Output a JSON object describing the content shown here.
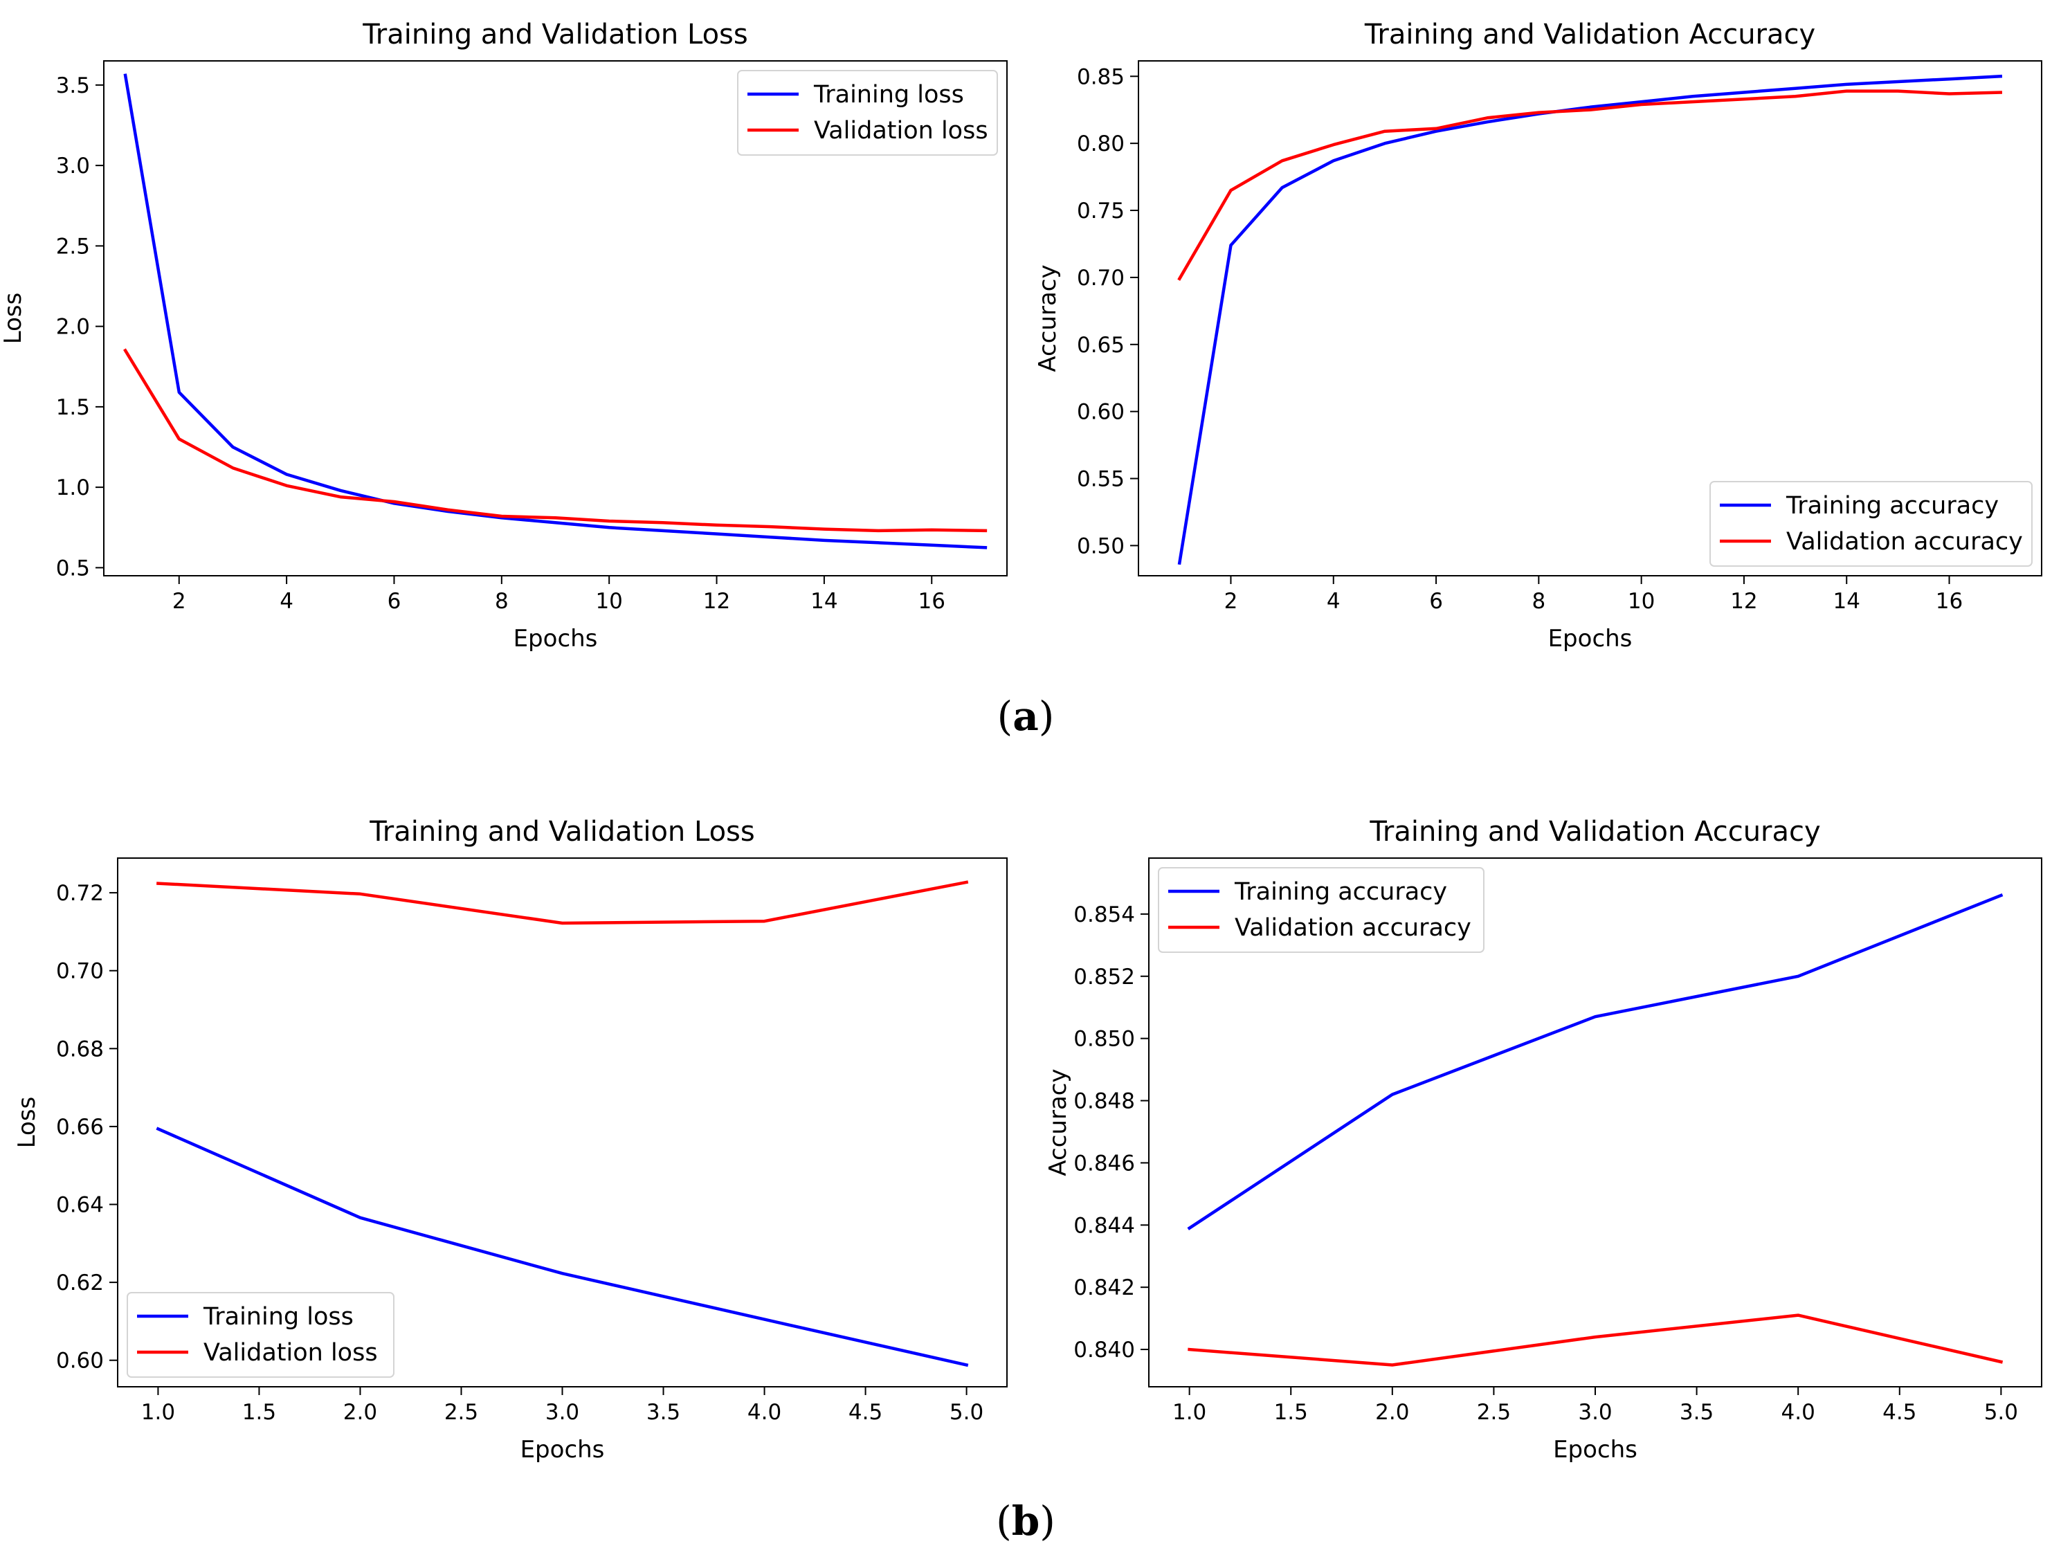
{
  "captions": {
    "a": "a",
    "b": "b"
  },
  "colors": {
    "training": "#0000ff",
    "validation": "#ff0000"
  },
  "chart_data": [
    {
      "id": "a-loss",
      "type": "line",
      "title": "Training and Validation Loss",
      "xlabel": "Epochs",
      "ylabel": "Loss",
      "xlim": [
        0.6,
        17.4
      ],
      "ylim": [
        0.45,
        3.65
      ],
      "xticks": [
        2,
        4,
        6,
        8,
        10,
        12,
        14,
        16
      ],
      "xtick_labels": [
        "2",
        "4",
        "6",
        "8",
        "10",
        "12",
        "14",
        "16"
      ],
      "yticks": [
        0.5,
        1.0,
        1.5,
        2.0,
        2.5,
        3.0,
        3.5
      ],
      "ytick_labels": [
        "0.5",
        "1.0",
        "1.5",
        "2.0",
        "2.5",
        "3.0",
        "3.5"
      ],
      "legend_position": "upper-right",
      "x": [
        1,
        2,
        3,
        4,
        5,
        6,
        7,
        8,
        9,
        10,
        11,
        12,
        13,
        14,
        15,
        16,
        17
      ],
      "series": [
        {
          "name": "Training loss",
          "color": "#0000ff",
          "values": [
            3.56,
            1.59,
            1.25,
            1.08,
            0.98,
            0.9,
            0.85,
            0.81,
            0.78,
            0.75,
            0.73,
            0.71,
            0.69,
            0.67,
            0.655,
            0.64,
            0.625
          ]
        },
        {
          "name": "Validation loss",
          "color": "#ff0000",
          "values": [
            1.85,
            1.3,
            1.12,
            1.01,
            0.94,
            0.91,
            0.86,
            0.82,
            0.81,
            0.79,
            0.78,
            0.765,
            0.755,
            0.74,
            0.73,
            0.735,
            0.73
          ]
        }
      ]
    },
    {
      "id": "a-acc",
      "type": "line",
      "title": "Training and Validation Accuracy",
      "xlabel": "Epochs",
      "ylabel": "Accuracy",
      "xlim": [
        0.2,
        17.8
      ],
      "ylim": [
        0.4775,
        0.8615
      ],
      "xticks": [
        2,
        4,
        6,
        8,
        10,
        12,
        14,
        16
      ],
      "xtick_labels": [
        "2",
        "4",
        "6",
        "8",
        "10",
        "12",
        "14",
        "16"
      ],
      "yticks": [
        0.5,
        0.55,
        0.6,
        0.65,
        0.7,
        0.75,
        0.8,
        0.85
      ],
      "ytick_labels": [
        "0.50",
        "0.55",
        "0.60",
        "0.65",
        "0.70",
        "0.75",
        "0.80",
        "0.85"
      ],
      "legend_position": "lower-right",
      "x": [
        1,
        2,
        3,
        4,
        5,
        6,
        7,
        8,
        9,
        10,
        11,
        12,
        13,
        14,
        15,
        16,
        17
      ],
      "series": [
        {
          "name": "Training accuracy",
          "color": "#0000ff",
          "values": [
            0.487,
            0.724,
            0.767,
            0.787,
            0.8,
            0.809,
            0.816,
            0.822,
            0.827,
            0.831,
            0.835,
            0.838,
            0.841,
            0.844,
            0.846,
            0.848,
            0.85
          ]
        },
        {
          "name": "Validation accuracy",
          "color": "#ff0000",
          "values": [
            0.699,
            0.765,
            0.787,
            0.799,
            0.809,
            0.811,
            0.819,
            0.823,
            0.825,
            0.829,
            0.831,
            0.833,
            0.835,
            0.839,
            0.839,
            0.837,
            0.838
          ]
        }
      ]
    },
    {
      "id": "b-loss",
      "type": "line",
      "title": "Training and Validation Loss",
      "xlabel": "Epochs",
      "ylabel": "Loss",
      "xlim": [
        0.8,
        5.2
      ],
      "ylim": [
        0.5932,
        0.7289
      ],
      "xticks": [
        1.0,
        1.5,
        2.0,
        2.5,
        3.0,
        3.5,
        4.0,
        4.5,
        5.0
      ],
      "xtick_labels": [
        "1.0",
        "1.5",
        "2.0",
        "2.5",
        "3.0",
        "3.5",
        "4.0",
        "4.5",
        "5.0"
      ],
      "yticks": [
        0.6,
        0.62,
        0.64,
        0.66,
        0.68,
        0.7,
        0.72
      ],
      "ytick_labels": [
        "0.60",
        "0.62",
        "0.64",
        "0.66",
        "0.68",
        "0.70",
        "0.72"
      ],
      "legend_position": "lower-left",
      "x": [
        1,
        2,
        3,
        4,
        5
      ],
      "series": [
        {
          "name": "Training loss",
          "color": "#0000ff",
          "values": [
            0.6594,
            0.6366,
            0.6223,
            0.6105,
            0.5988
          ]
        },
        {
          "name": "Validation loss",
          "color": "#ff0000",
          "values": [
            0.7224,
            0.7197,
            0.7122,
            0.7127,
            0.7227
          ]
        }
      ]
    },
    {
      "id": "b-acc",
      "type": "line",
      "title": "Training and Validation Accuracy",
      "xlabel": "Epochs",
      "ylabel": "Accuracy",
      "xlim": [
        0.8,
        5.2
      ],
      "ylim": [
        0.8388,
        0.8558
      ],
      "xticks": [
        1.0,
        1.5,
        2.0,
        2.5,
        3.0,
        3.5,
        4.0,
        4.5,
        5.0
      ],
      "xtick_labels": [
        "1.0",
        "1.5",
        "2.0",
        "2.5",
        "3.0",
        "3.5",
        "4.0",
        "4.5",
        "5.0"
      ],
      "yticks": [
        0.84,
        0.842,
        0.844,
        0.846,
        0.848,
        0.85,
        0.852,
        0.854
      ],
      "ytick_labels": [
        "0.840",
        "0.842",
        "0.844",
        "0.846",
        "0.848",
        "0.850",
        "0.852",
        "0.854"
      ],
      "legend_position": "upper-left",
      "x": [
        1,
        2,
        3,
        4,
        5
      ],
      "series": [
        {
          "name": "Training accuracy",
          "color": "#0000ff",
          "values": [
            0.8439,
            0.8482,
            0.8507,
            0.852,
            0.8546
          ]
        },
        {
          "name": "Validation accuracy",
          "color": "#ff0000",
          "values": [
            0.84,
            0.8395,
            0.8404,
            0.8411,
            0.8396
          ]
        }
      ]
    }
  ]
}
